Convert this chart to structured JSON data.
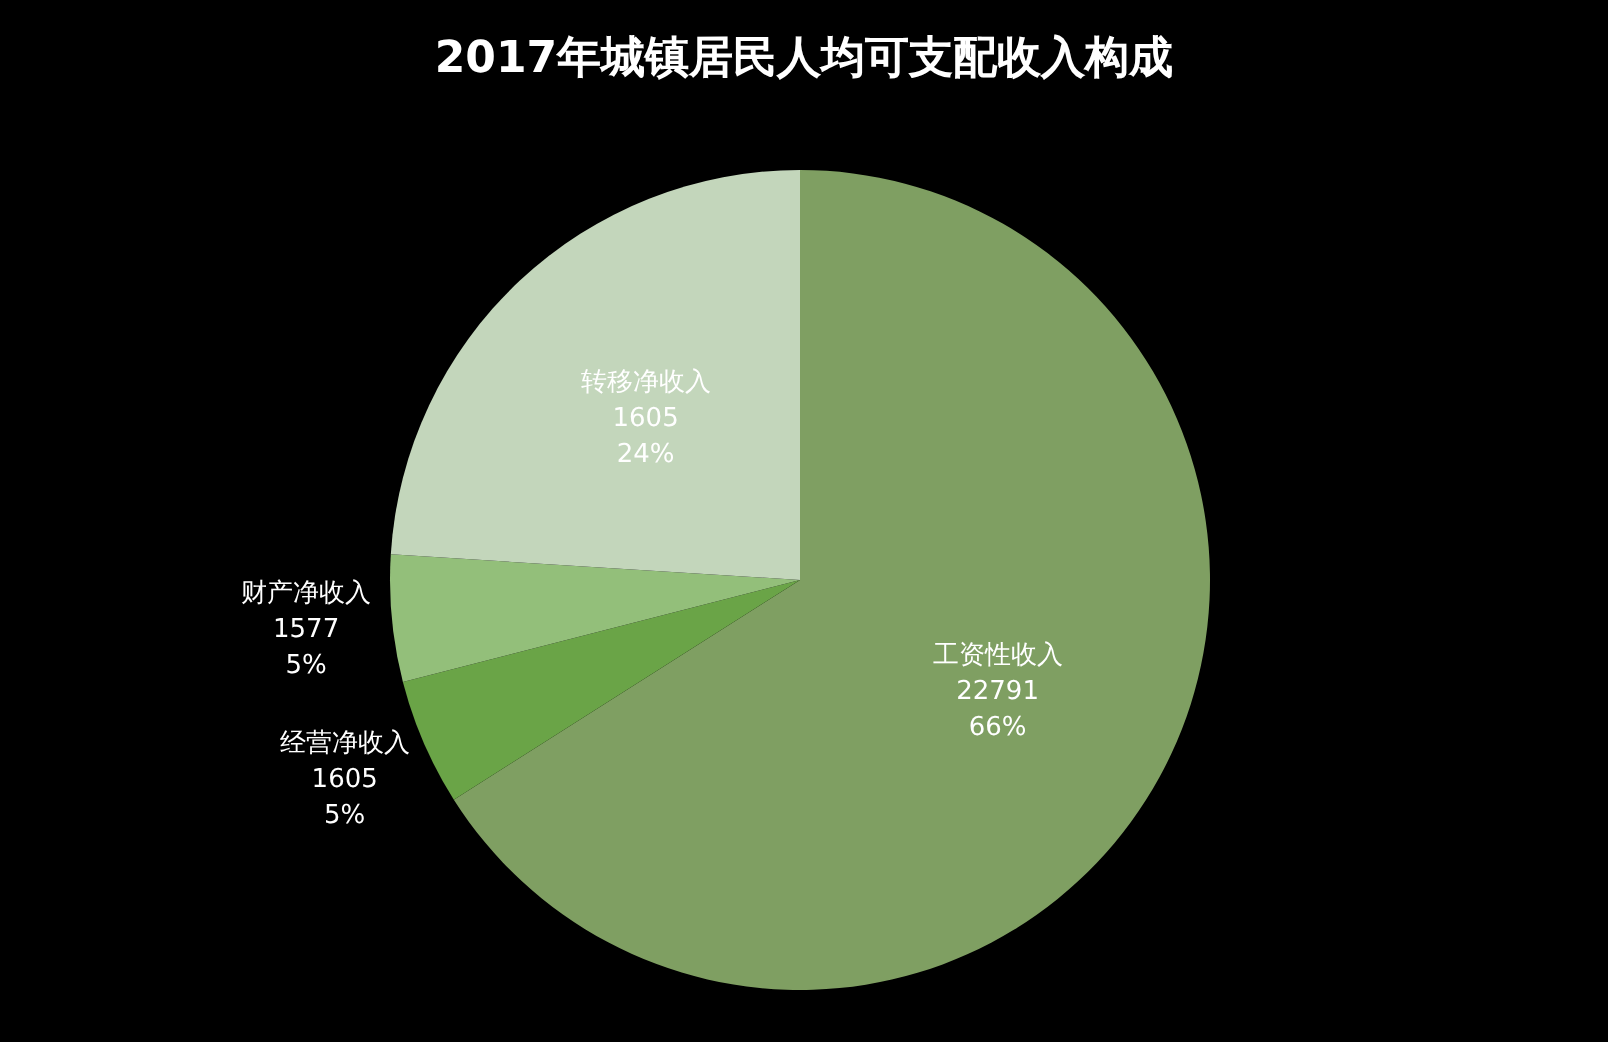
{
  "chart_data": {
    "type": "pie",
    "title": "2017年城镇居民人均可支配收入构成",
    "categories": [
      "工资性收入",
      "经营净收入",
      "财产净收入",
      "转移净收入"
    ],
    "values": [
      66,
      5,
      5,
      24
    ],
    "value_labels": [
      "66%",
      "5%",
      "5%",
      "24%"
    ],
    "annotations": [
      "22791",
      "1605",
      "1577",
      "1605"
    ],
    "colors": [
      "#7f9f62",
      "#6aa447",
      "#93bf7a",
      "#c3d6bb"
    ]
  }
}
